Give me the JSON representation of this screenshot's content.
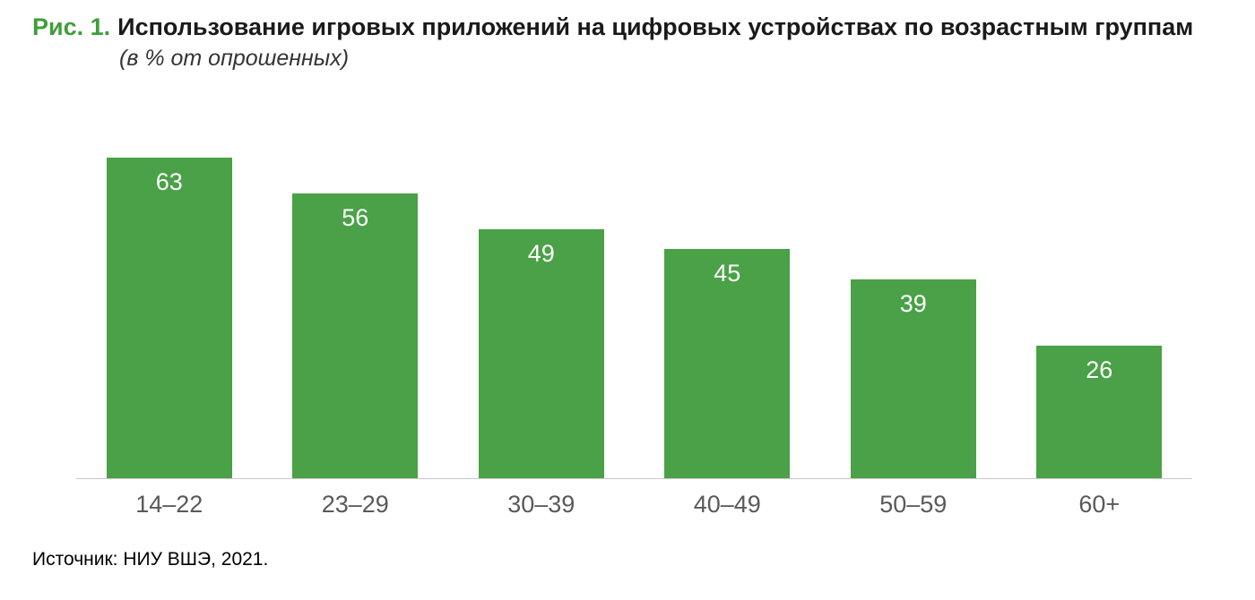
{
  "figure": {
    "label": "Рис. 1.",
    "title": "Использование игровых приложений на цифровых устройствах по возрастным группам",
    "subtitle": "(в % от опрошенных)",
    "source": "Источник: НИУ ВШЭ, 2021."
  },
  "colors": {
    "accent_green": "#3f9e3a",
    "bar": "#4aa147",
    "axis_line": "#c9c9c9",
    "tick_label": "#595959",
    "value_label": "#ffffff"
  },
  "chart_data": {
    "type": "bar",
    "categories": [
      "14–22",
      "23–29",
      "30–39",
      "40–49",
      "50–59",
      "60+"
    ],
    "values": [
      63,
      56,
      49,
      45,
      39,
      26
    ],
    "title": "Рис. 1. Использование игровых приложений на цифровых устройствах по возрастным группам (в % от опрошенных)",
    "xlabel": "",
    "ylabel": "",
    "ylim": [
      0,
      63
    ],
    "grid": false,
    "legend": "none",
    "value_labels": "inside-top, white"
  }
}
